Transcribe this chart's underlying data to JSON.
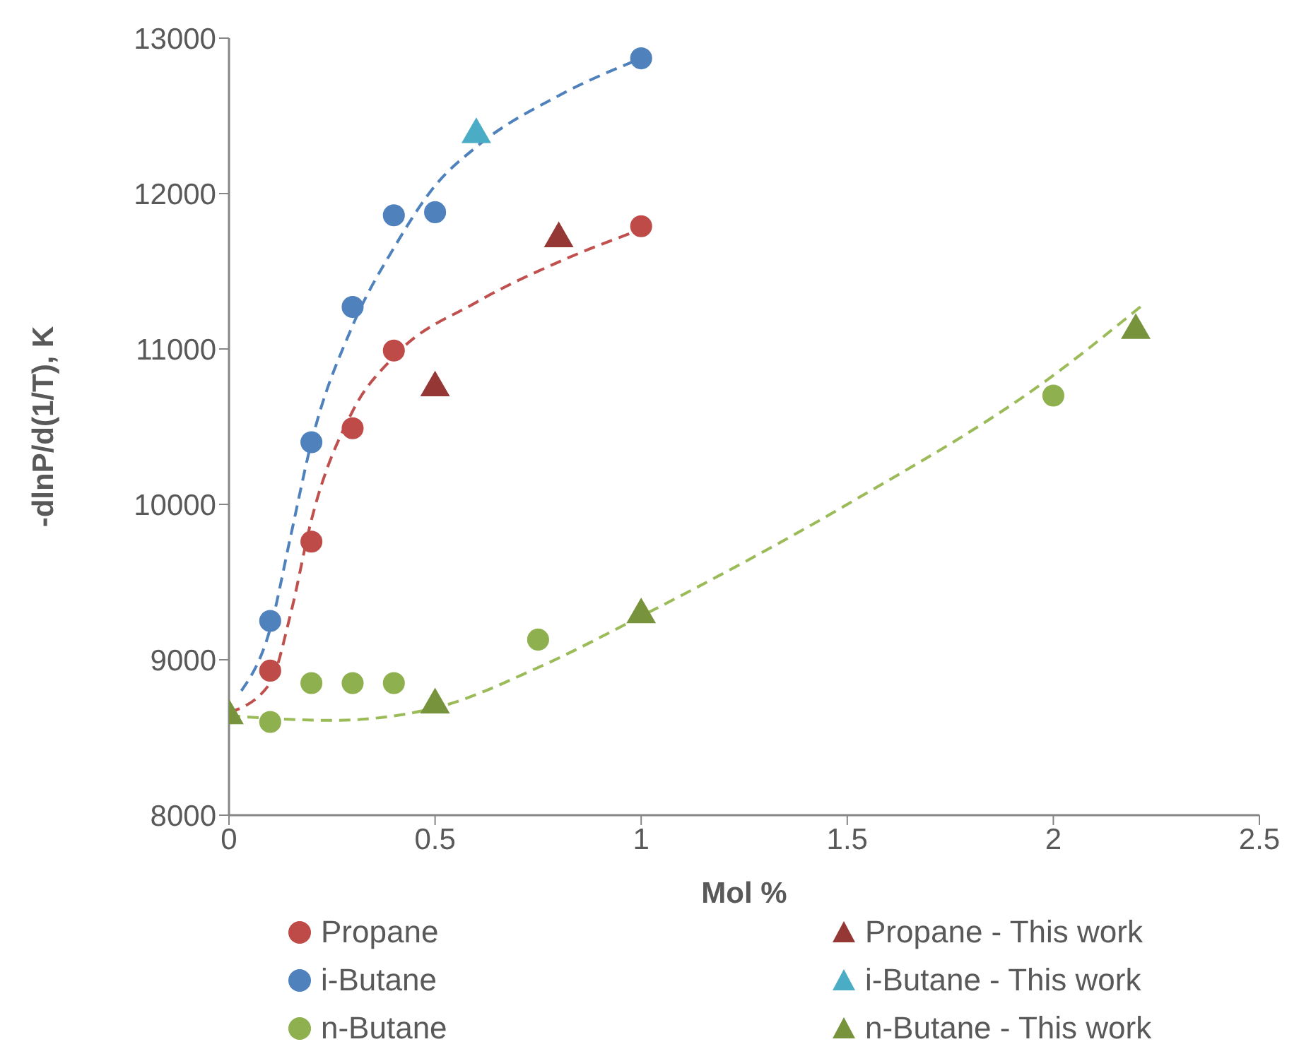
{
  "chart_data": {
    "type": "scatter",
    "xlabel": "Mol %",
    "ylabel": "-dlnP/d(1/T), K",
    "xlim": [
      0,
      2.5
    ],
    "xticks": [
      0,
      0.5,
      1,
      1.5,
      2,
      2.5
    ],
    "ylim": [
      8000,
      13000
    ],
    "yticks": [
      8000,
      9000,
      10000,
      11000,
      12000,
      13000
    ],
    "grid": false,
    "legend": "bottom",
    "series": [
      {
        "name": "Propane",
        "marker": "circle",
        "color": "#be4b48",
        "x": [
          0.1,
          0.2,
          0.3,
          0.4,
          1.0
        ],
        "values": [
          8930,
          9760,
          10490,
          10990,
          11790
        ]
      },
      {
        "name": "Propane - This work",
        "marker": "triangle",
        "color": "#953735",
        "x": [
          0.5,
          0.8
        ],
        "values": [
          10750,
          11710
        ]
      },
      {
        "name": "i-Butane",
        "marker": "circle",
        "color": "#4f81bd",
        "x": [
          0.1,
          0.2,
          0.3,
          0.4,
          0.5,
          1.0
        ],
        "values": [
          9250,
          10400,
          11270,
          11860,
          11880,
          12870
        ]
      },
      {
        "name": "i-Butane - This work",
        "marker": "triangle",
        "color": "#4bacc6",
        "x": [
          0.6
        ],
        "values": [
          12380
        ]
      },
      {
        "name": "n-Butane",
        "marker": "circle",
        "color": "#8eb04f",
        "x": [
          0.1,
          0.2,
          0.3,
          0.4,
          0.75,
          2.0
        ],
        "values": [
          8600,
          8850,
          8850,
          8850,
          9130,
          10700
        ]
      },
      {
        "name": "n-Butane - This work",
        "marker": "triangle",
        "color": "#77933c",
        "x": [
          0,
          0.5,
          1.0,
          2.2
        ],
        "values": [
          8640,
          8710,
          9290,
          11120
        ]
      },
      {
        "type": "line",
        "line_style": "dashed",
        "marker": "none",
        "color": "#c0504d",
        "x": [
          0,
          0.1,
          0.15,
          0.2,
          0.3,
          0.4,
          0.6,
          0.8,
          1.0
        ],
        "values": [
          8660,
          8850,
          9300,
          9900,
          10600,
          10950,
          11300,
          11560,
          11770
        ]
      },
      {
        "type": "line",
        "line_style": "dashed",
        "marker": "none",
        "color": "#4f81bd",
        "x": [
          0.03,
          0.1,
          0.15,
          0.2,
          0.3,
          0.4,
          0.5,
          0.6,
          0.8,
          1.0
        ],
        "values": [
          8800,
          9200,
          9800,
          10400,
          11150,
          11650,
          12050,
          12300,
          12630,
          12870
        ]
      },
      {
        "type": "line",
        "line_style": "dashed",
        "marker": "none",
        "color": "#9bbb59",
        "x": [
          0,
          0.25,
          0.5,
          0.75,
          1.0,
          1.5,
          2.0,
          2.22
        ],
        "values": [
          8640,
          8610,
          8690,
          8950,
          9280,
          10000,
          10830,
          11290
        ]
      }
    ]
  }
}
